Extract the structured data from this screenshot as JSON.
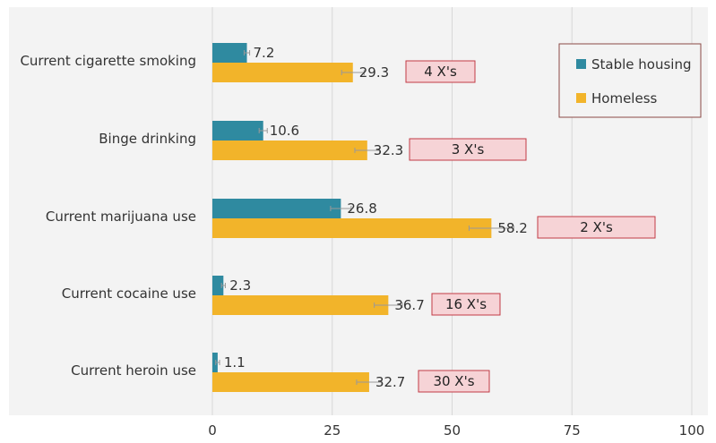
{
  "chart_data": {
    "type": "bar",
    "orientation": "horizontal",
    "categories": [
      "Current cigarette smoking",
      "Binge drinking",
      "Current marijuana use",
      "Current cocaine use",
      "Current heroin use"
    ],
    "series": [
      {
        "name": "Stable housing",
        "color": "#2f8aa0",
        "values": [
          7.2,
          10.6,
          26.8,
          2.3,
          1.1
        ]
      },
      {
        "name": "Homeless",
        "color": "#f2b42a",
        "values": [
          29.3,
          32.3,
          58.2,
          36.7,
          32.7
        ]
      }
    ],
    "annotations": [
      "4 X's",
      "3 X's",
      "2 X's",
      "16 X's",
      "30 X's"
    ],
    "xticks": [
      "0",
      "25",
      "50",
      "75",
      "100"
    ],
    "xlim": [
      0,
      100
    ],
    "grid": true,
    "legend": "top-right",
    "colors": {
      "annotation_fill": "#f6d3d6",
      "annotation_border": "#c23b45",
      "grid": "#d8d8d8"
    }
  }
}
